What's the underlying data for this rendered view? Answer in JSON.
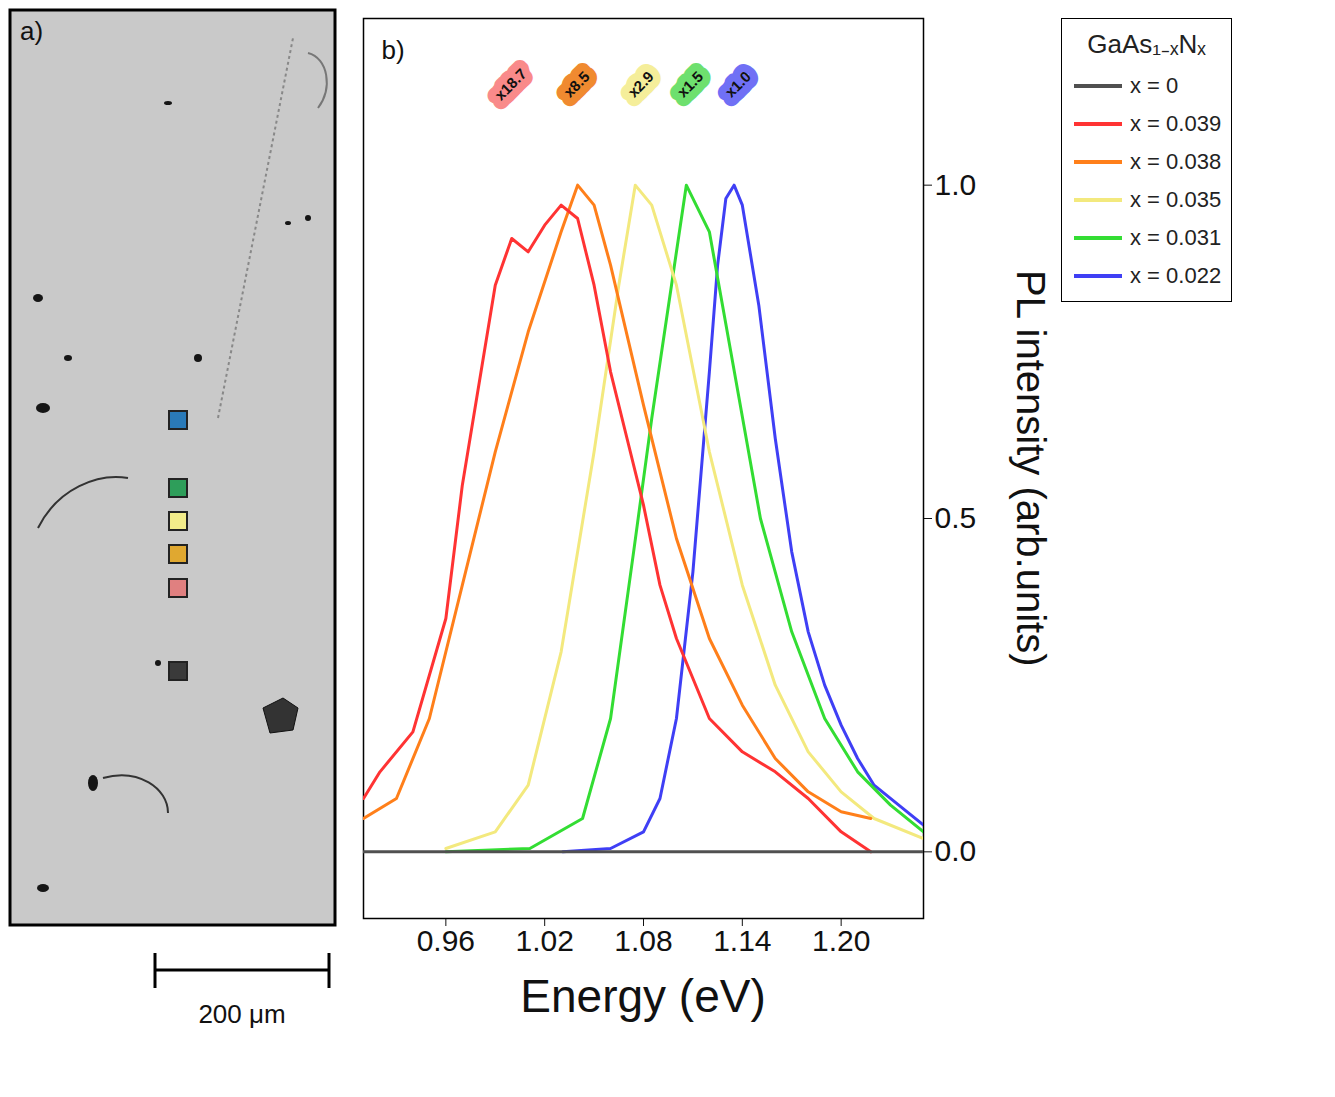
{
  "image_panel": {
    "label": "a)",
    "scale_bar": "200 μm",
    "marker_colors": [
      "#2a7ab8",
      "#2e9e5a",
      "#f2ec8a",
      "#e0a830",
      "#e08080",
      "#3a3a3a"
    ]
  },
  "chart_data": {
    "type": "line",
    "panel_label": "b)",
    "x_label": "Energy (eV)",
    "y_label": "PL intensity (arb.units)",
    "xlim": [
      0.91,
      1.25
    ],
    "ylim": [
      -0.1,
      1.25
    ],
    "xticks": [
      0.96,
      1.02,
      1.08,
      1.14,
      {
        "value": 1.2,
        "label": "1.20"
      }
    ],
    "yticks": [
      {
        "value": 0,
        "label": "0.0"
      },
      0.5,
      {
        "value": 1,
        "label": "1.0"
      }
    ],
    "grid": false,
    "legend": "right",
    "legend_title": "GaAs₁₋ₓNₓ",
    "series": [
      {
        "name": "x = 0",
        "color": "#505050",
        "x": [
          0.91,
          1.0,
          1.1,
          1.2,
          1.25
        ],
        "values": [
          0,
          0,
          0,
          0,
          0
        ]
      },
      {
        "name": "x = 0.039",
        "color": "#ff3333",
        "x": [
          0.91,
          0.92,
          0.94,
          0.96,
          0.97,
          0.98,
          0.99,
          1.0,
          1.01,
          1.02,
          1.03,
          1.04,
          1.05,
          1.06,
          1.07,
          1.08,
          1.09,
          1.1,
          1.12,
          1.14,
          1.16,
          1.18,
          1.2,
          1.218
        ],
        "values": [
          0.08,
          0.12,
          0.18,
          0.35,
          0.55,
          0.7,
          0.85,
          0.92,
          0.9,
          0.94,
          0.97,
          0.95,
          0.85,
          0.72,
          0.62,
          0.52,
          0.4,
          0.32,
          0.2,
          0.15,
          0.12,
          0.08,
          0.03,
          0.0
        ]
      },
      {
        "name": "x = 0.038",
        "color": "#ff7f1a",
        "x": [
          0.91,
          0.93,
          0.95,
          0.97,
          0.99,
          1.01,
          1.03,
          1.04,
          1.05,
          1.06,
          1.08,
          1.1,
          1.12,
          1.14,
          1.16,
          1.18,
          1.2,
          1.218
        ],
        "values": [
          0.05,
          0.08,
          0.2,
          0.4,
          0.6,
          0.78,
          0.93,
          1.0,
          0.97,
          0.88,
          0.67,
          0.47,
          0.32,
          0.22,
          0.14,
          0.09,
          0.06,
          0.05
        ]
      },
      {
        "name": "x = 0.035",
        "color": "#f3e97e",
        "x": [
          0.96,
          0.99,
          1.01,
          1.03,
          1.05,
          1.065,
          1.075,
          1.085,
          1.1,
          1.12,
          1.14,
          1.16,
          1.18,
          1.2,
          1.22,
          1.25
        ],
        "values": [
          0.005,
          0.03,
          0.1,
          0.3,
          0.6,
          0.85,
          1.0,
          0.97,
          0.85,
          0.6,
          0.4,
          0.25,
          0.15,
          0.09,
          0.05,
          0.02
        ]
      },
      {
        "name": "x = 0.031",
        "color": "#33dd33",
        "x": [
          0.96,
          1.011,
          1.043,
          1.06,
          1.074,
          1.085,
          1.097,
          1.106,
          1.12,
          1.133,
          1.151,
          1.17,
          1.19,
          1.21,
          1.23,
          1.25
        ],
        "values": [
          0,
          0.005,
          0.05,
          0.2,
          0.45,
          0.65,
          0.85,
          1.0,
          0.93,
          0.75,
          0.5,
          0.33,
          0.2,
          0.12,
          0.07,
          0.03
        ]
      },
      {
        "name": "x = 0.022",
        "color": "#3f3ff5",
        "x": [
          1.031,
          1.06,
          1.08,
          1.09,
          1.1,
          1.11,
          1.12,
          1.125,
          1.13,
          1.135,
          1.14,
          1.15,
          1.16,
          1.17,
          1.18,
          1.19,
          1.2,
          1.21,
          1.22,
          1.235,
          1.25
        ],
        "values": [
          0,
          0.005,
          0.03,
          0.08,
          0.2,
          0.42,
          0.72,
          0.88,
          0.98,
          1.0,
          0.97,
          0.82,
          0.62,
          0.45,
          0.33,
          0.25,
          0.19,
          0.14,
          0.1,
          0.07,
          0.04
        ]
      }
    ],
    "annotations": [
      {
        "text": "x18.7",
        "x": 0.997,
        "color": "#f98a8a"
      },
      {
        "text": "x8.5",
        "x": 1.037,
        "color": "#f08a30"
      },
      {
        "text": "x2.9",
        "x": 1.076,
        "color": "#f5ee9a"
      },
      {
        "text": "x1.5",
        "x": 1.106,
        "color": "#6ee06e"
      },
      {
        "text": "x1.0",
        "x": 1.135,
        "color": "#7070f5"
      }
    ]
  }
}
